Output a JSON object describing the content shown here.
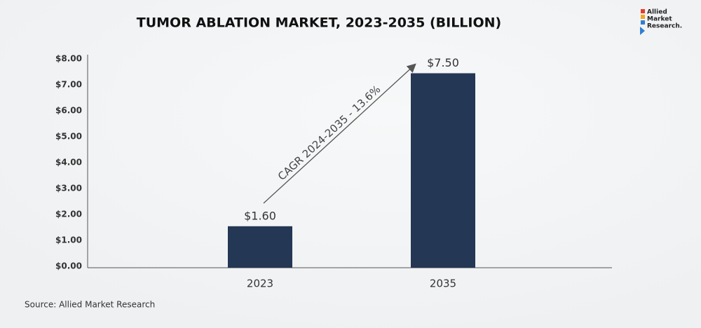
{
  "chart_data": {
    "type": "bar",
    "title": "TUMOR ABLATION MARKET, 2023-2035 (BILLION)",
    "categories": [
      "2023",
      "2035"
    ],
    "values": [
      1.6,
      7.5
    ],
    "value_labels": [
      "$1.60",
      "$7.50"
    ],
    "color": "#243754",
    "ylim": [
      0,
      8
    ],
    "yticks": [
      {
        "value": 0,
        "label": "$0.00"
      },
      {
        "value": 1,
        "label": "$1.00"
      },
      {
        "value": 2,
        "label": "$2.00"
      },
      {
        "value": 3,
        "label": "$3.00"
      },
      {
        "value": 4,
        "label": "$4.00"
      },
      {
        "value": 5,
        "label": "$5.00"
      },
      {
        "value": 6,
        "label": "$6.00"
      },
      {
        "value": 7,
        "label": "$7.00"
      },
      {
        "value": 8,
        "label": "$8.00"
      }
    ],
    "grid": false,
    "annotation": "CAGR 2024-2035 - 13.6%",
    "source": "Source: Allied Market Research"
  },
  "logo": {
    "line1": "Allied",
    "line2": "Market",
    "line3": "Research."
  }
}
